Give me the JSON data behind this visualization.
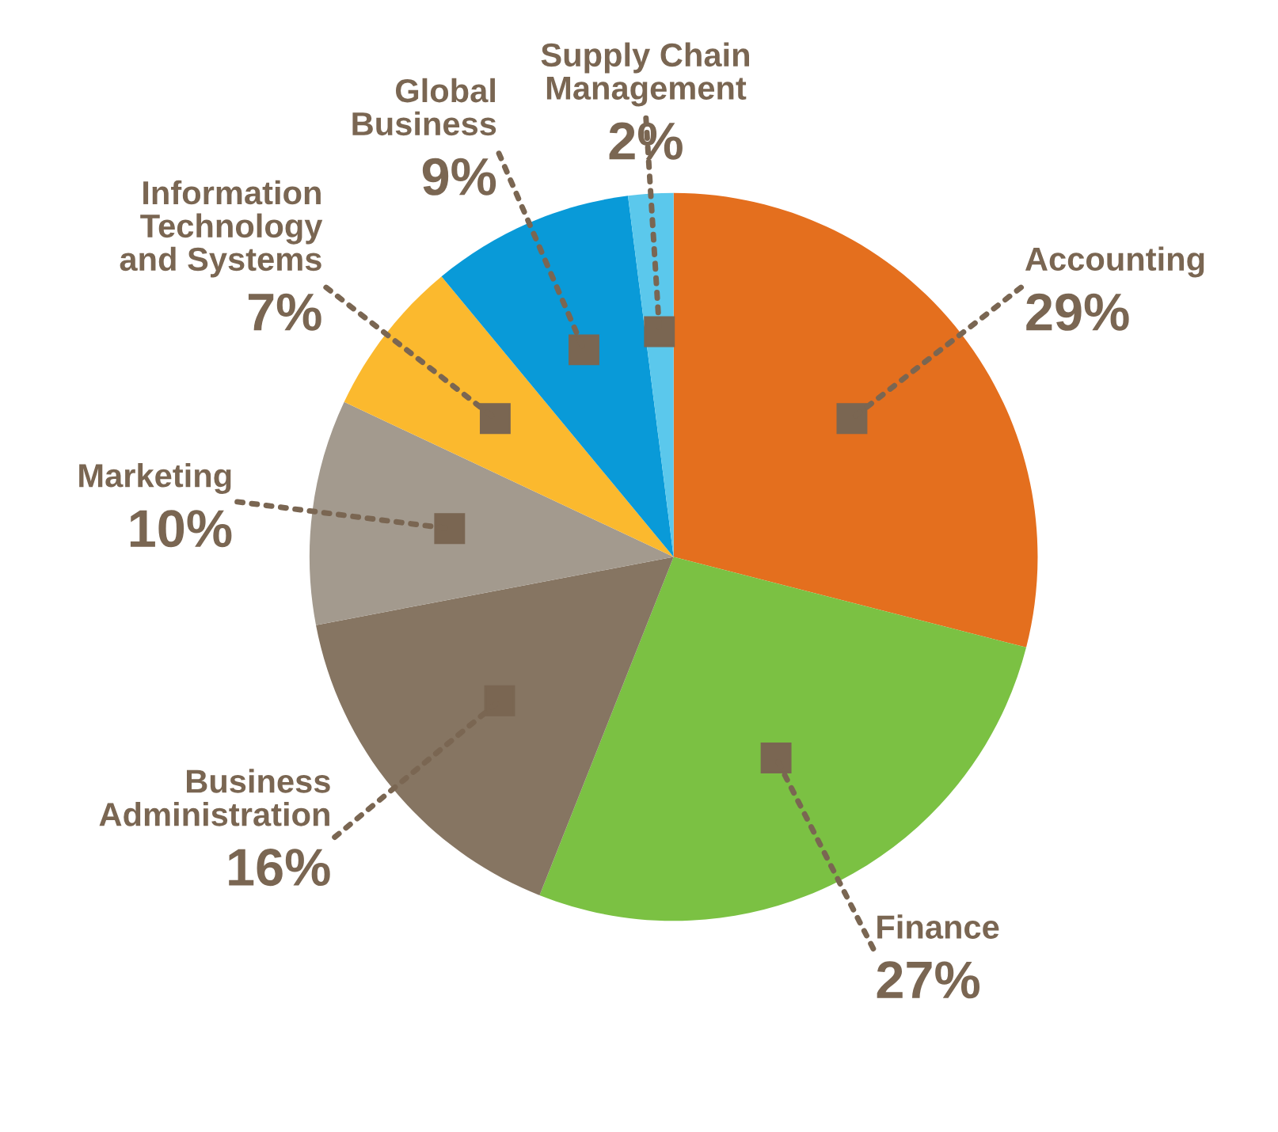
{
  "chart_data": {
    "type": "pie",
    "categories": [
      "Accounting",
      "Finance",
      "Business Administration",
      "Marketing",
      "Information Technology and Systems",
      "Global Business",
      "Supply Chain Management"
    ],
    "values": [
      29,
      27,
      16,
      10,
      7,
      9,
      2
    ],
    "colors": [
      "#e46f1e",
      "#7bc143",
      "#867562",
      "#a39a8e",
      "#fbb92e",
      "#099ad8",
      "#5bc8ec"
    ],
    "value_labels": [
      "29%",
      "27%",
      "16%",
      "10%",
      "7%",
      "9%",
      "2%"
    ]
  }
}
